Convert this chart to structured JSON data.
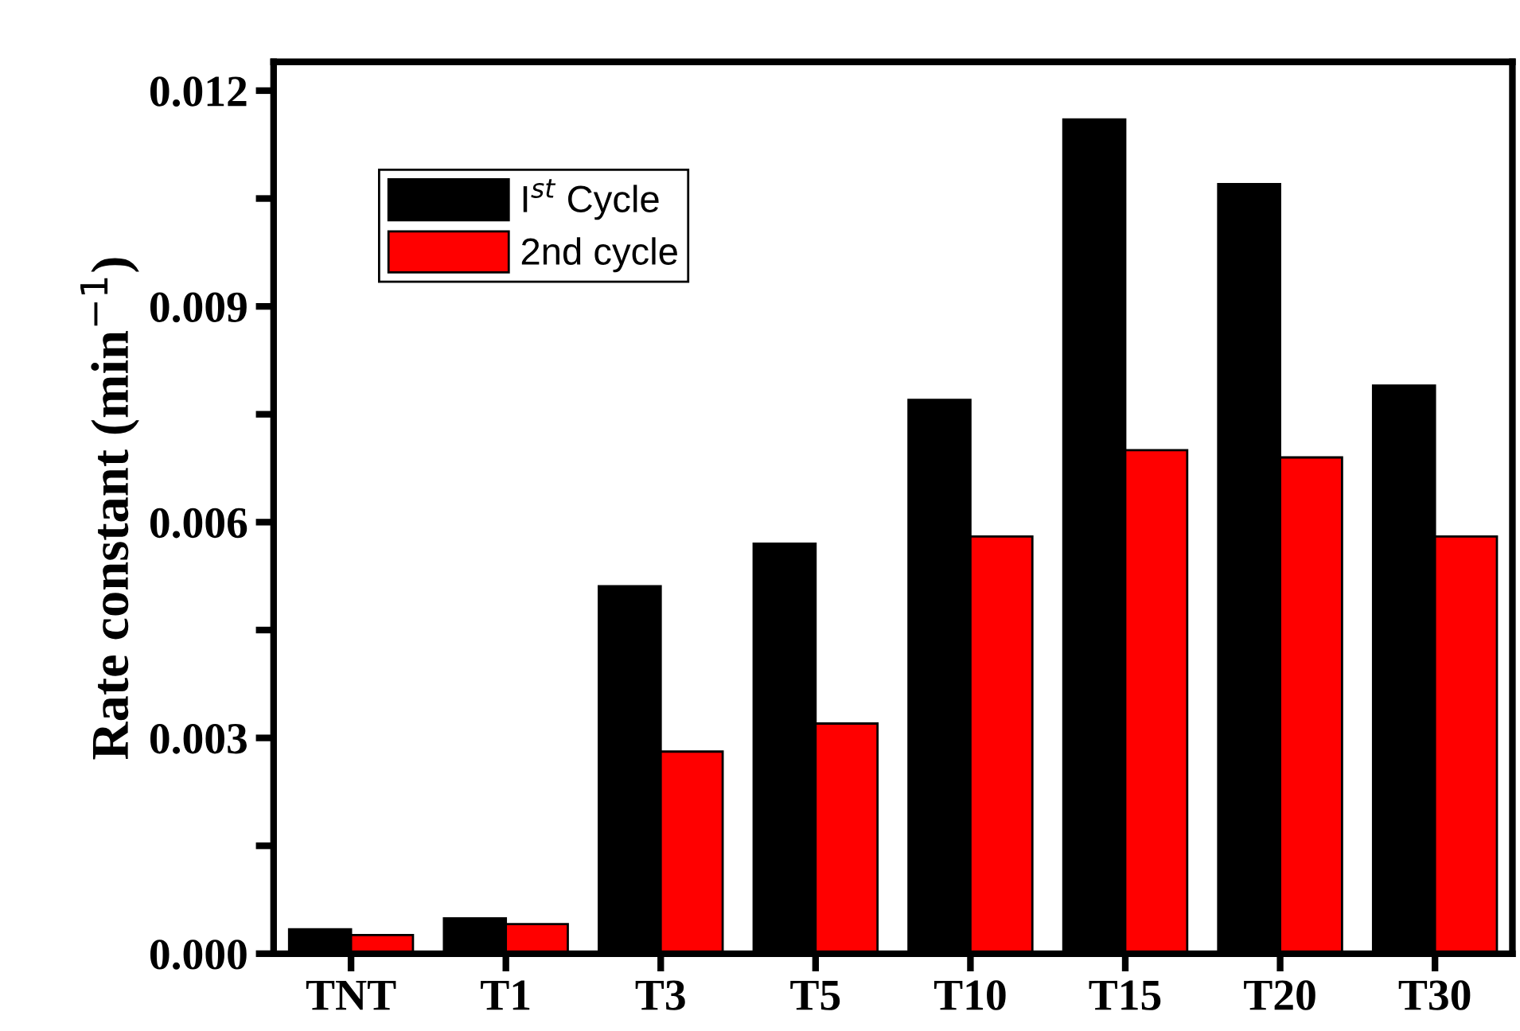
{
  "chart_data": {
    "type": "bar",
    "ylabel": "Rate constant (min$^{−1}$)",
    "categories": [
      "TNT",
      "T1",
      "T3",
      "T5",
      "T10",
      "T15",
      "T20",
      "T30"
    ],
    "series": [
      {
        "name": "I$^{st}$ Cycle",
        "color": "#000000",
        "values": [
          0.00034,
          0.00049,
          0.00511,
          0.0057,
          0.0077,
          0.0116,
          0.0107,
          0.0079
        ]
      },
      {
        "name": "2nd cycle",
        "color": "#ff0000",
        "values": [
          0.00026,
          0.00041,
          0.00281,
          0.0032,
          0.0058,
          0.007,
          0.0069,
          0.0058
        ]
      }
    ],
    "ylim": [
      0,
      0.0124
    ],
    "yticks": [
      {
        "value": 0,
        "label": "0.000"
      },
      {
        "value": 0.0015,
        "label": null
      },
      0.003,
      {
        "value": 0.0045,
        "label": null
      },
      0.006,
      {
        "value": 0.0075,
        "label": null
      },
      0.009,
      {
        "value": 0.0105,
        "label": null
      },
      0.012
    ],
    "grid": false,
    "legend": "top left"
  }
}
